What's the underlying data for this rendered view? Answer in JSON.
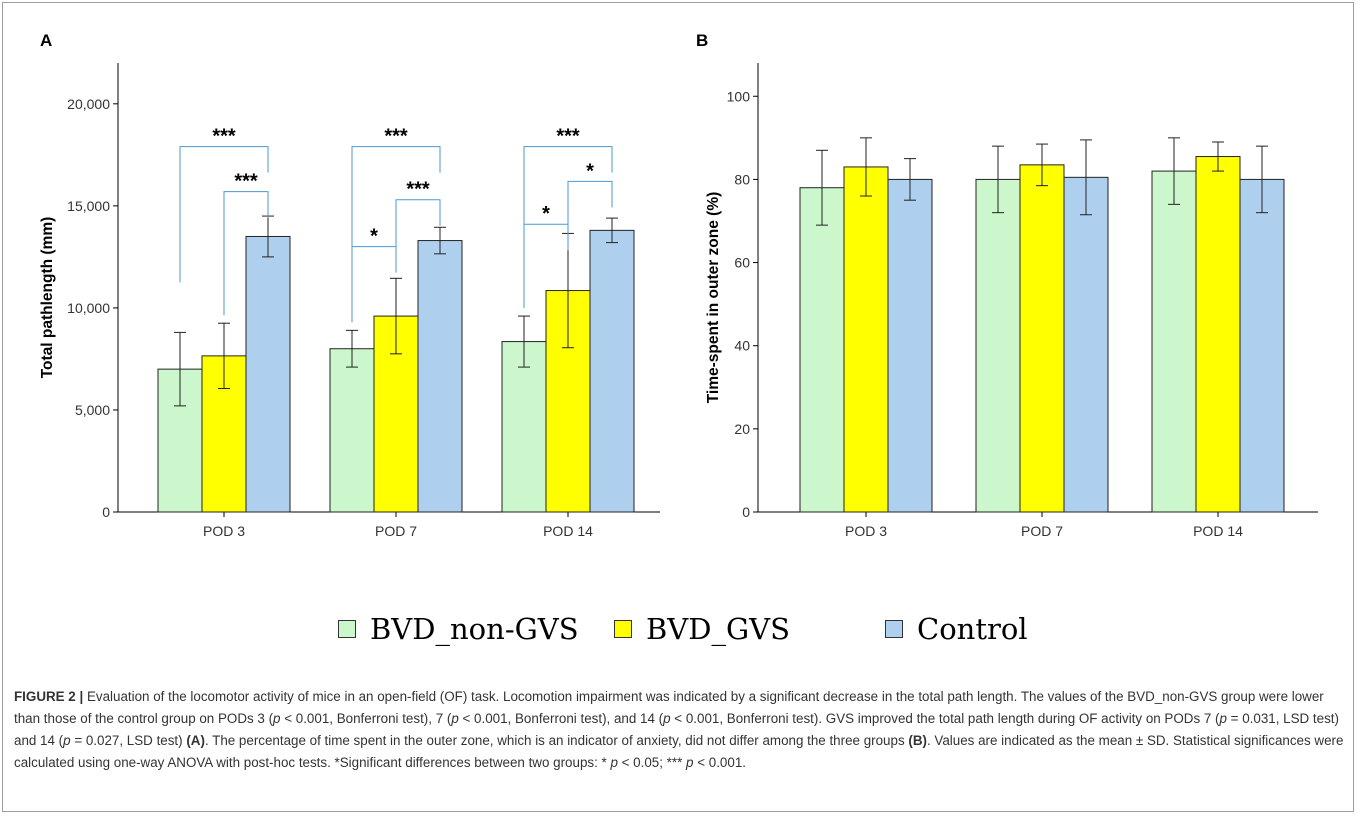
{
  "colors": {
    "BVD_non-GVS": "#ccf7cc",
    "BVD_GVS": "#ffff00",
    "Control": "#aed0ee",
    "bracket": "#4a98d4",
    "axis": "#000000",
    "bar_stroke": "#222222"
  },
  "legend": [
    {
      "label": "BVD_non-GVS",
      "color": "#ccf7cc"
    },
    {
      "label": "BVD_GVS",
      "color": "#ffff00"
    },
    {
      "label": "Control",
      "color": "#aed0ee"
    }
  ],
  "chart_data": [
    {
      "panel": "A",
      "type": "bar",
      "categories": [
        "POD 3",
        "POD 7",
        "POD 14"
      ],
      "ylabel": "Total pathlength (mm)",
      "ylim": [
        0,
        22000
      ],
      "yticks": [
        0,
        5000,
        10000,
        15000,
        20000
      ],
      "ytick_labels": [
        "0",
        "5,000",
        "10,000",
        "15,000",
        "20,000"
      ],
      "series": [
        {
          "name": "BVD_non-GVS",
          "values": [
            7000,
            8000,
            8350
          ],
          "err": [
            1800,
            900,
            1250
          ]
        },
        {
          "name": "BVD_GVS",
          "values": [
            7650,
            9600,
            10850
          ],
          "err": [
            1600,
            1850,
            2800
          ]
        },
        {
          "name": "Control",
          "values": [
            13500,
            13300,
            13800
          ],
          "err": [
            1000,
            650,
            600
          ]
        }
      ],
      "significance": [
        {
          "category": 0,
          "from": 0,
          "to": 2,
          "label": "***",
          "y": 17900
        },
        {
          "category": 0,
          "from": 1,
          "to": 2,
          "label": "***",
          "y": 15700
        },
        {
          "category": 1,
          "from": 0,
          "to": 2,
          "label": "***",
          "y": 17900
        },
        {
          "category": 1,
          "from": 0,
          "to": 1,
          "label": "*",
          "y": 13000
        },
        {
          "category": 1,
          "from": 1,
          "to": 2,
          "label": "***",
          "y": 15300
        },
        {
          "category": 2,
          "from": 0,
          "to": 2,
          "label": "***",
          "y": 17900
        },
        {
          "category": 2,
          "from": 0,
          "to": 1,
          "label": "*",
          "y": 14100
        },
        {
          "category": 2,
          "from": 1,
          "to": 2,
          "label": "*",
          "y": 16200
        }
      ]
    },
    {
      "panel": "B",
      "type": "bar",
      "categories": [
        "POD 3",
        "POD 7",
        "POD 14"
      ],
      "ylabel": "Time-spent in outer zone (%)",
      "ylim": [
        0,
        108
      ],
      "yticks": [
        0,
        20,
        40,
        60,
        80,
        100
      ],
      "ytick_labels": [
        "0",
        "20",
        "40",
        "60",
        "80",
        "100"
      ],
      "series": [
        {
          "name": "BVD_non-GVS",
          "values": [
            78,
            80,
            82
          ],
          "err": [
            9,
            8,
            8
          ]
        },
        {
          "name": "BVD_GVS",
          "values": [
            83,
            83.5,
            85.5
          ],
          "err": [
            7,
            5,
            3.5
          ]
        },
        {
          "name": "Control",
          "values": [
            80,
            80.5,
            80
          ],
          "err": [
            5,
            9,
            8
          ]
        }
      ]
    }
  ],
  "caption": {
    "label": "FIGURE 2 |",
    "text_1": " Evaluation of the locomotor activity of mice in an open-field (OF) task. Locomotion impairment was indicated by a significant decrease in the total path length. The values of the BVD_non-GVS group were lower than those of the control group on PODs 3 (",
    "text_2": " < 0.001, Bonferroni test), 7 (",
    "text_3": " < 0.001, Bonferroni test), and 14 (",
    "text_4": " < 0.001, Bonferroni test). GVS improved the total path length during OF activity on PODs 7 (",
    "text_5": " = 0.031, LSD test) and 14 (",
    "text_6": " = 0.027, LSD test) ",
    "ref_a": "(A)",
    "text_7": ". The percentage of time spent in the outer zone, which is an indicator of anxiety, did not differ among the three groups ",
    "ref_b": "(B)",
    "text_8": ". Values are indicated as the mean ± SD. Statistical significances were calculated using one-way ANOVA with post-hoc tests. *Significant differences between two groups: * ",
    "text_9": " < 0.05; *** ",
    "text_10": " < 0.001.",
    "p": "p"
  }
}
